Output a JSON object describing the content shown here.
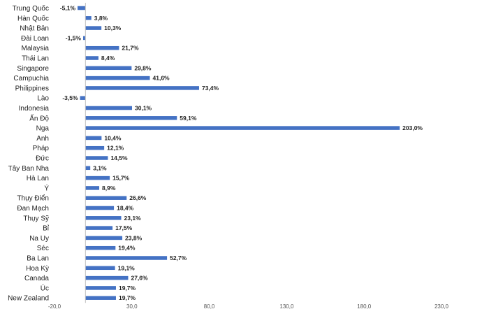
{
  "colors": {
    "bar": "#4472C4",
    "axis": "#bfbfbf",
    "text": "#222222",
    "tick": "#555555"
  },
  "chart_data": {
    "type": "bar",
    "orientation": "horizontal",
    "categories": [
      "Trung Quốc",
      "Hàn Quốc",
      "Nhật Bản",
      "Đài Loan",
      "Malaysia",
      "Thái Lan",
      "Singapore",
      "Campuchia",
      "Philippines",
      "Lào",
      "Indonesia",
      "Ấn Độ",
      "Nga",
      "Anh",
      "Pháp",
      "Đức",
      "Tây Ban Nha",
      "Hà Lan",
      "Ý",
      "Thụy Điển",
      "Đan Mạch",
      "Thụy Sỹ",
      "Bỉ",
      "Na Uy",
      "Séc",
      "Ba Lan",
      "Hoa Kỳ",
      "Canada",
      "Úc",
      "New Zealand"
    ],
    "values": [
      -5.1,
      3.8,
      10.3,
      -1.5,
      21.7,
      8.4,
      29.8,
      41.6,
      73.4,
      -3.5,
      30.1,
      59.1,
      203.0,
      10.4,
      12.1,
      14.5,
      3.1,
      15.7,
      8.9,
      26.6,
      18.4,
      23.1,
      17.5,
      23.8,
      19.4,
      52.7,
      19.1,
      27.6,
      19.7,
      19.7
    ],
    "value_labels": [
      "-5,1%",
      "3,8%",
      "10,3%",
      "-1,5%",
      "21,7%",
      "8,4%",
      "29,8%",
      "41,6%",
      "73,4%",
      "-3,5%",
      "30,1%",
      "59,1%",
      "203,0%",
      "10,4%",
      "12,1%",
      "14,5%",
      "3,1%",
      "15,7%",
      "8,9%",
      "26,6%",
      "18,4%",
      "23,1%",
      "17,5%",
      "23,8%",
      "19,4%",
      "52,7%",
      "19,1%",
      "27,6%",
      "19,7%",
      "19,7%"
    ],
    "x_ticks": [
      -20,
      30,
      80,
      130,
      180,
      230
    ],
    "x_tick_labels": [
      "-20,0",
      "30,0",
      "80,0",
      "130,0",
      "180,0",
      "230,0"
    ],
    "xlim": [
      -20,
      230
    ],
    "grid": false,
    "legend": "none",
    "title": "",
    "xlabel": "",
    "ylabel": ""
  }
}
